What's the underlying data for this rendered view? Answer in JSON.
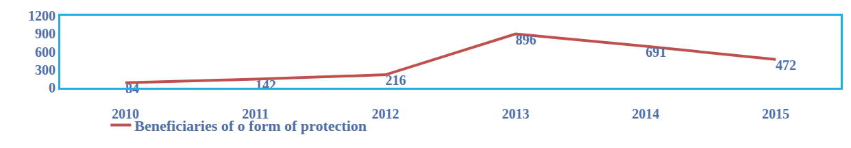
{
  "chart_data": {
    "type": "line",
    "categories": [
      "2010",
      "2011",
      "2012",
      "2013",
      "2014",
      "2015"
    ],
    "series": [
      {
        "name": "Beneficiaries of o form of protection",
        "color": "#c0504d",
        "values": [
          84,
          142,
          216,
          896,
          691,
          472
        ]
      }
    ],
    "ylim": [
      0,
      1200
    ],
    "yticks": [
      0,
      300,
      600,
      900,
      1200
    ],
    "grid": false,
    "data_labels": true,
    "legend": "bottom left"
  }
}
